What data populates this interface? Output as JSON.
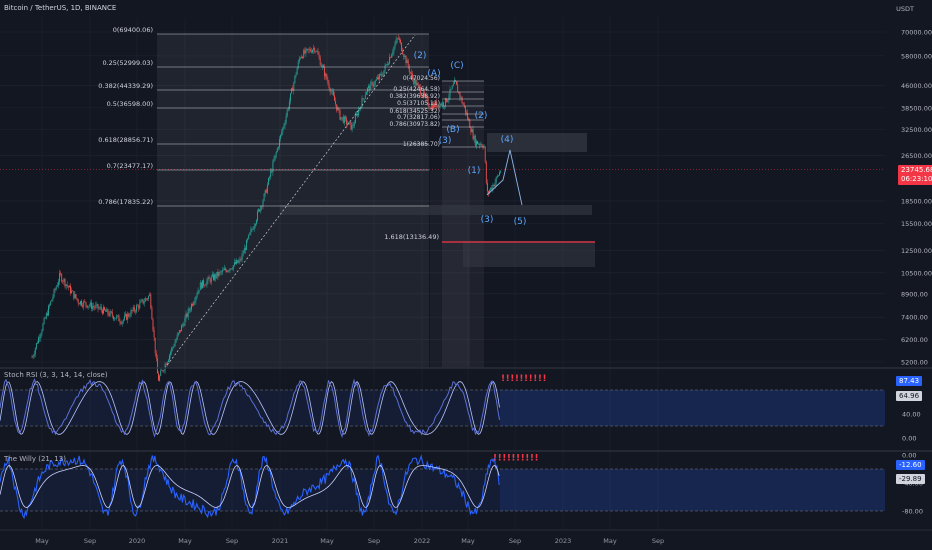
{
  "header": {
    "title": "Bitcoin / TetherUS, 1D, BINANCE",
    "currency": "USDT"
  },
  "colors": {
    "background": "#131722",
    "grid": "#1f2430",
    "fib_line": "#c9ccd4",
    "rsi_line": "#5b6fd6",
    "willy_line": "#2962ff",
    "willy_signal": "#c8d0ff",
    "wave_label": "#5da7ff",
    "price_badge": "#f23645",
    "target_line": "#f23645",
    "candle_up": "#26a69a",
    "candle_down": "#ef5350",
    "zone": "#2a2e39"
  },
  "chart_data": {
    "type": "candlestick",
    "x_ticks": [
      "May",
      "Sep",
      "2020",
      "May",
      "Sep",
      "2021",
      "May",
      "Sep",
      "2022",
      "May",
      "Sep",
      "2023",
      "May",
      "Sep"
    ],
    "y_scale": "log",
    "y_ticks": [
      "70000.00",
      "58000.00",
      "46000.00",
      "38500.00",
      "32500.00",
      "26500.00",
      "18500.00",
      "15500.00",
      "12500.00",
      "10500.00",
      "8900.00",
      "7400.00",
      "6200.00",
      "5200.00"
    ],
    "last_price": "23745.68",
    "countdown": "06:23:10",
    "fib_retracement_main": [
      "0(69400.06)",
      "0.25(52999.03)",
      "0.382(44339.29)",
      "0.5(36598.00)",
      "0.618(28856.71)",
      "0.7(23477.17)",
      "0.786(17835.22)"
    ],
    "fib_retracement_secondary": [
      "0(47024.56)",
      "0.25(42464.58)",
      "0.382(39638.92)",
      "0.5(37105.11)",
      "0.618(34525.32)",
      "0.7(32817.06)",
      "0.786(30973.82)",
      "1(26385.70)"
    ],
    "fib_extension": "1.618(13136.49)",
    "wave_labels": [
      "(2)",
      "(A)",
      "(C)",
      "(B)",
      "(2)",
      "(3)",
      "(4)",
      "(1)",
      "(3)",
      "(5)"
    ],
    "indicators": [
      {
        "name": "Stoch RSI",
        "label": "Stoch RSI (3, 3, 14, 14, close)",
        "values": [
          "87.43",
          "64.96"
        ],
        "y_ticks": [
          "40.00",
          "0.00"
        ],
        "signal": "!!!!!!!!!!"
      },
      {
        "name": "The Willy",
        "label": "The Willy (21, 13)",
        "values": [
          "-12.60",
          "-29.89"
        ],
        "y_ticks": [
          "0.00",
          "-40.00",
          "-80.00"
        ],
        "signal": "!!!!!!!!!!"
      }
    ]
  }
}
